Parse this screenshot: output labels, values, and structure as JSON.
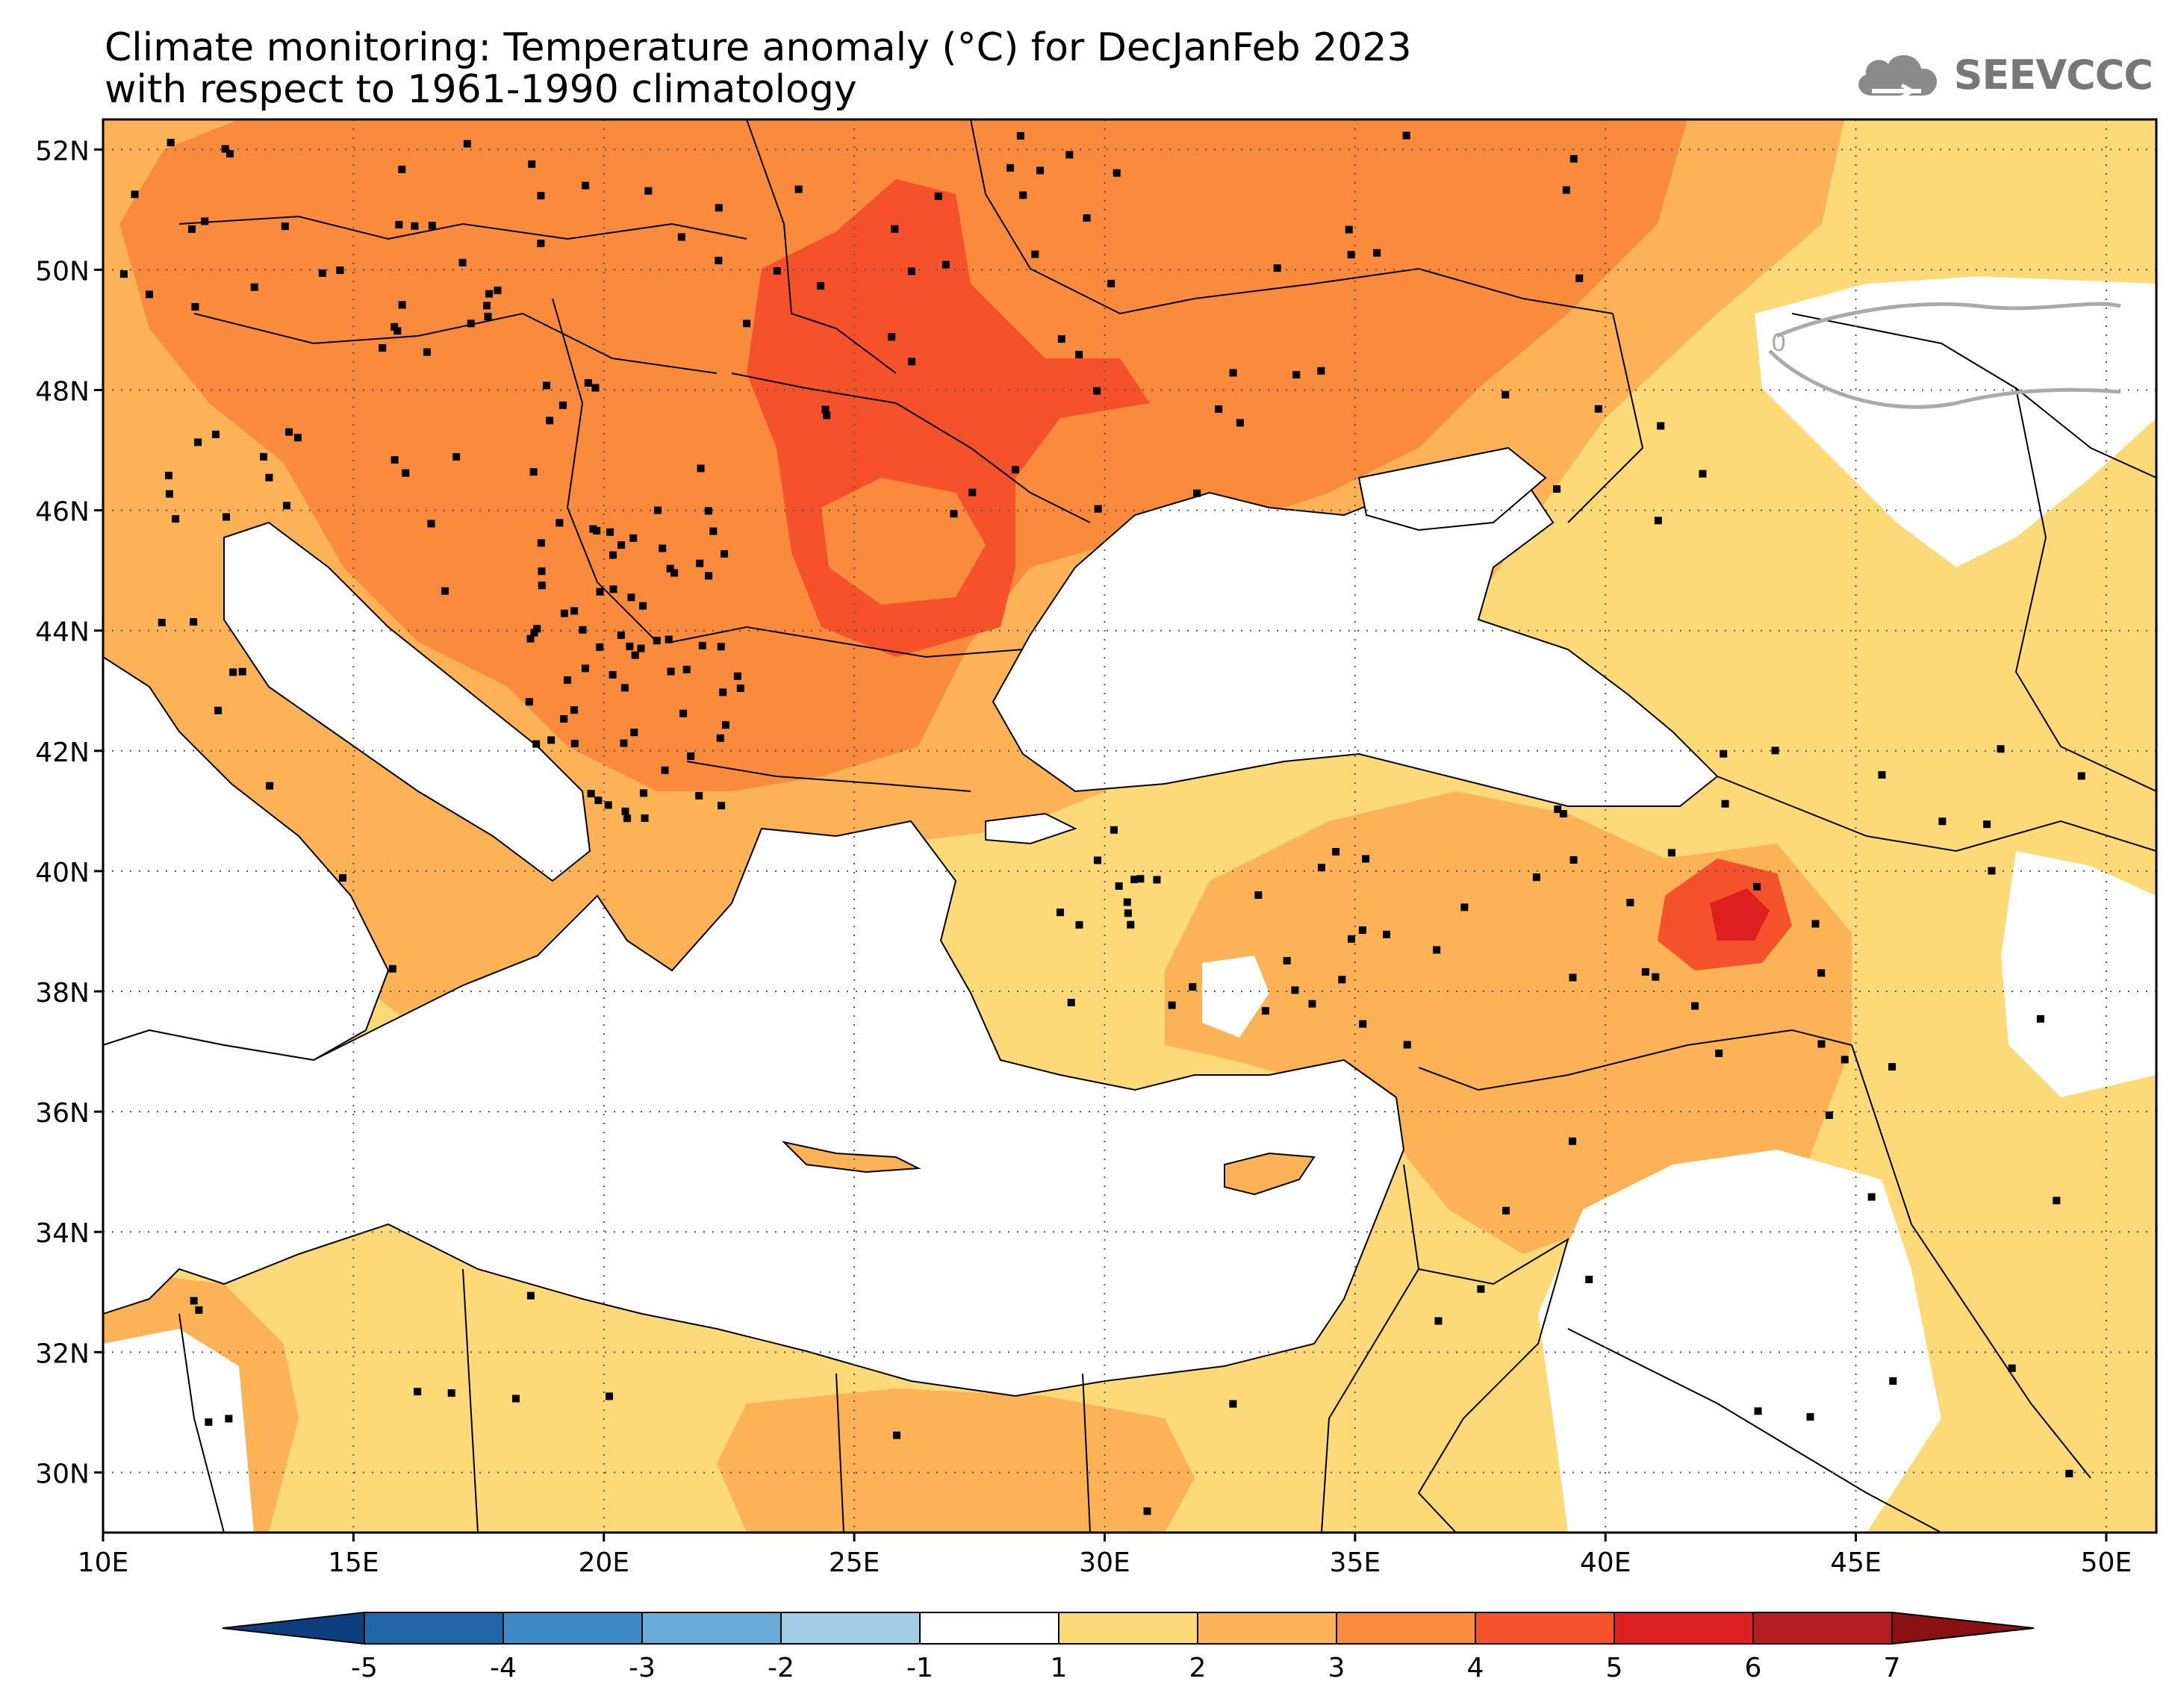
{
  "title": {
    "line1": "Climate monitoring: Temperature anomaly (°C) for DecJanFeb 2023",
    "line2": "with respect to 1961-1990 climatology"
  },
  "logo": {
    "text": "SEEVCCC",
    "icon": "cloud-icon"
  },
  "map": {
    "lat_labels": [
      "52N",
      "50N",
      "48N",
      "46N",
      "44N",
      "42N",
      "40N",
      "38N",
      "36N",
      "34N",
      "32N",
      "30N"
    ],
    "lon_labels": [
      "10E",
      "15E",
      "20E",
      "25E",
      "30E",
      "35E",
      "40E",
      "45E",
      "50E"
    ],
    "lon_range": [
      10,
      51
    ],
    "lat_range": [
      29,
      52.5
    ],
    "contour_label": "0",
    "colors": {
      "sea": "#ffffff",
      "land_default": "#fed978",
      "borders": "#000000",
      "station": "#000000"
    }
  },
  "colorbar": {
    "labels": [
      "-5",
      "-4",
      "-3",
      "-2",
      "-1",
      "1",
      "2",
      "3",
      "4",
      "5",
      "6",
      "7"
    ],
    "colors": [
      "#0d3f7f",
      "#2066a8",
      "#3e8cc7",
      "#68abd7",
      "#a0cce4",
      "#ffffff",
      "#fed978",
      "#fdb255",
      "#fb8b3c",
      "#f5512b",
      "#de1f1f",
      "#b61d1d",
      "#8a1212"
    ]
  }
}
